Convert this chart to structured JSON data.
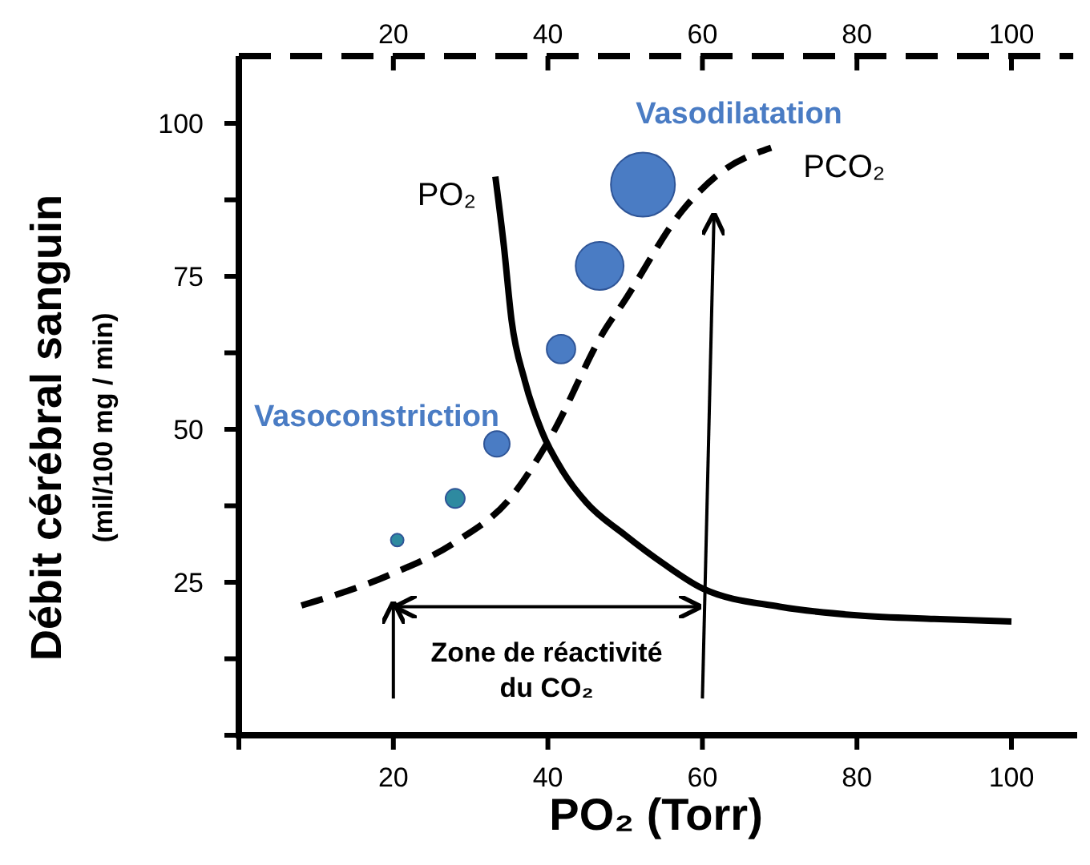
{
  "chart_data": {
    "type": "line",
    "xlabel": "PO₂ (Torr)",
    "ylabel": "Débit cérébral sanguin\n(mil/100 mg / min)",
    "xlim": [
      0,
      108
    ],
    "xticks": [
      {
        "value": 0,
        "label": null
      },
      20,
      40,
      60,
      80,
      100
    ],
    "x2lim": [
      0,
      108
    ],
    "x2ticks": [
      20,
      40,
      60,
      80,
      100
    ],
    "ylim": [
      0,
      111
    ],
    "yticks": [
      {
        "value": 0,
        "label": null
      },
      {
        "value": 12.5,
        "label": null
      },
      25,
      {
        "value": 37.5,
        "label": null
      },
      50,
      {
        "value": 62.5,
        "label": null
      },
      75,
      {
        "value": 87.5,
        "label": null
      },
      100
    ],
    "series": [
      {
        "name": "PO₂",
        "color": "#000000",
        "line_style": "solid",
        "x": [
          33.2,
          34.3,
          35.3,
          37,
          39.2,
          42,
          45,
          50,
          55,
          60,
          70,
          80,
          90,
          100
        ],
        "values": [
          91.3,
          80,
          67.8,
          58,
          49.7,
          43,
          38,
          32.7,
          28,
          24,
          21,
          19.6,
          19,
          18.6
        ]
      },
      {
        "name": "PCO₂",
        "color": "#000000",
        "line_style": "dashed",
        "x": [
          8.1,
          19.5,
          28.2,
          35.3,
          40.2,
          47.5,
          49.6,
          57.5,
          62.4,
          68.9
        ],
        "values": [
          21.2,
          26.2,
          31.7,
          39,
          48.4,
          66.5,
          70.4,
          85.9,
          92,
          96
        ]
      },
      {
        "type": "bubble",
        "x": [
          20.5,
          28,
          33.4,
          41.7,
          46.7,
          52.3
        ],
        "values": [
          31.9,
          38.7,
          47.6,
          63.1,
          76.7,
          90
        ],
        "sizes": [
          0.04,
          0.09,
          0.16,
          0.2,
          0.56,
          1
        ],
        "colors": [
          "#2e8aa0",
          "#2e8aa0",
          "#4a7cc4",
          "#4a7cc4",
          "#4a7cc4",
          "#4a7cc4"
        ]
      }
    ],
    "annotations": [
      "Vasoconstriction",
      "Vasodilatation",
      "Zone de réactivité du CO₂"
    ]
  }
}
